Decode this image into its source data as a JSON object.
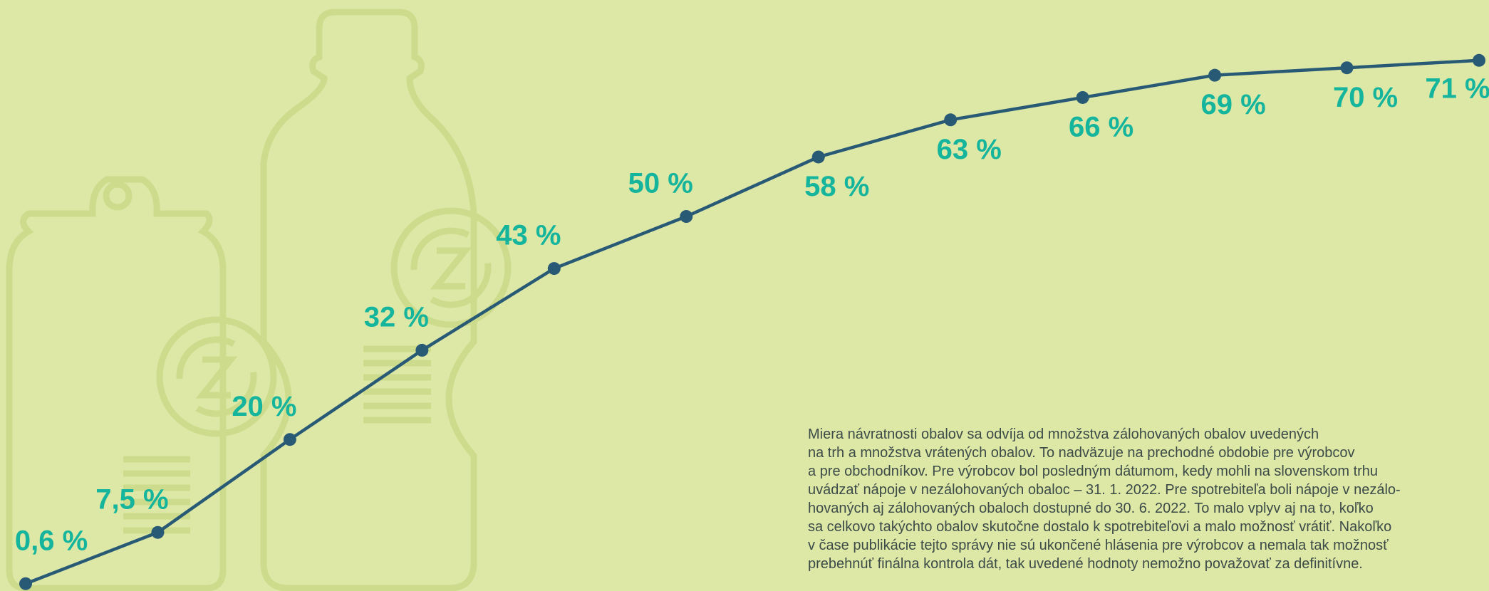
{
  "chart_data": {
    "type": "line",
    "categories": [
      null,
      null,
      null,
      null,
      null,
      null,
      null,
      null,
      null,
      null,
      null,
      null
    ],
    "series": [
      {
        "color": "#285a76",
        "values": [
          0.6,
          7.5,
          20,
          32,
          43,
          50,
          58,
          63,
          66,
          69,
          70,
          71
        ],
        "value_labels": [
          "0,6 %",
          "7,5 %",
          "20 %",
          "32 %",
          "43 %",
          "50 %",
          "58 %",
          "63 %",
          "66 %",
          "69 %",
          "70 %",
          "71 %"
        ]
      }
    ],
    "label_color": "#14b59c",
    "ylim": [
      0,
      75
    ],
    "note": [
      "Miera návratnosti obalov sa odvíja od množstva zálohovaných obalov uvedených",
      "na trh a množstva vrátených obalov. To nadväzuje na prechodné obdobie pre výrobcov",
      "a pre obchodníkov. Pre výrobcov bol posledným dátumom, kedy mohli na slovenskom trhu",
      "uvádzať nápoje v nezálohovaných obaloc – 31. 1. 2022. Pre spotrebiteľa boli nápoje v nezálo-",
      "hovaných aj zálohovaných obaloch dostupné do 30. 6. 2022. To malo vplyv aj na to, koľko",
      "sa celkovo takýchto obalov skutočne dostalo k spotrebiteľovi a malo možnosť vrátiť. Nakoľko",
      "v čase publikácie tejto správy nie sú ukončené hlásenia pre výrobcov a nemala tak možnosť",
      "prebehnúť finálna kontrola dát, tak uvedené hodnoty nemožno považovať za definitívne."
    ]
  }
}
